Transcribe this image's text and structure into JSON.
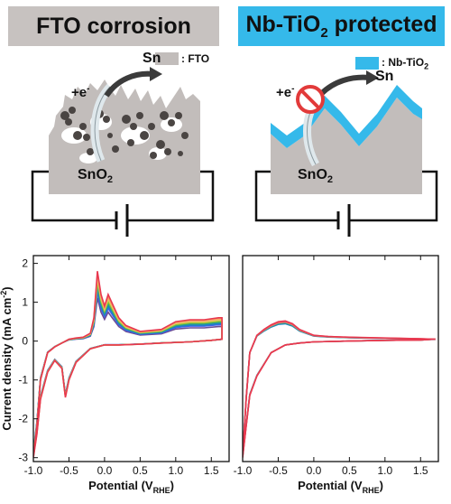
{
  "top": {
    "left_title": "FTO corrosion",
    "right_title": "Nb-TiO",
    "right_title_sub": "2",
    "right_title_tail": " protected",
    "left_legend": ": FTO",
    "right_legend": ": Nb-TiO",
    "right_legend_sub": "2",
    "electron_label": "+e",
    "electron_sup": "-",
    "product_label": "Sn",
    "reactant_label": "SnO",
    "reactant_sub": "2"
  },
  "colors": {
    "fto": "#c2bdbb",
    "nbtio2": "#35b9ea",
    "title_left_bg": "#c7c2c0",
    "title_right_bg": "#35b9ea",
    "deposit": "#4a4543",
    "forbidden": "#e23a3a"
  },
  "icons": [
    "curved-arrow-icon",
    "forbidden-icon",
    "battery-icon"
  ],
  "chart_data": [
    {
      "type": "line",
      "panel": "left",
      "xlabel": "Potential (V",
      "xlabel_sub": "RHE",
      "xlabel_tail": ")",
      "ylabel": "Current density (mA cm",
      "ylabel_sup": "-2",
      "ylabel_tail": ")",
      "xlim": [
        -1.0,
        1.75
      ],
      "ylim": [
        -3.1,
        2.2
      ],
      "xticks": [
        "-1.0",
        "-0.5",
        "0.0",
        "0.5",
        "1.0",
        "1.5"
      ],
      "xtick_values": [
        -1.0,
        -0.5,
        0.0,
        0.5,
        1.0,
        1.5
      ],
      "yticks": [
        "-3",
        "-2",
        "-1",
        "0",
        "1",
        "2"
      ],
      "ytick_values": [
        -3,
        -2,
        -1,
        0,
        1,
        2
      ],
      "series_colors": [
        "#e8384f",
        "#f4a261",
        "#e9c46a",
        "#8ac926",
        "#2a9d8f",
        "#1982c4",
        "#4361ee",
        "#6a4c93"
      ],
      "forward_x": [
        -1.0,
        -0.95,
        -0.9,
        -0.8,
        -0.7,
        -0.6,
        -0.5,
        -0.4,
        -0.3,
        -0.2,
        -0.15,
        -0.1,
        -0.05,
        0.0,
        0.05,
        0.1,
        0.2,
        0.3,
        0.5,
        0.8,
        1.0,
        1.2,
        1.4,
        1.6,
        1.65
      ],
      "forward_y": [
        -3.0,
        -2.2,
        -1.0,
        -0.3,
        -0.15,
        -0.05,
        0.05,
        0.08,
        0.1,
        0.2,
        0.6,
        1.8,
        1.2,
        0.9,
        1.2,
        1.0,
        0.6,
        0.4,
        0.25,
        0.3,
        0.5,
        0.55,
        0.55,
        0.6,
        0.6
      ],
      "reverse_x": [
        1.65,
        1.5,
        1.2,
        0.8,
        0.5,
        0.2,
        0.0,
        -0.2,
        -0.4,
        -0.5,
        -0.55,
        -0.6,
        -0.7,
        -0.8,
        -0.9,
        -0.95,
        -1.0
      ],
      "reverse_y": [
        0.05,
        0.02,
        -0.02,
        -0.05,
        -0.08,
        -0.1,
        -0.1,
        -0.2,
        -0.55,
        -1.0,
        -1.45,
        -0.7,
        -0.5,
        -0.8,
        -1.5,
        -2.4,
        -3.0
      ],
      "amplitudes": [
        1.0,
        0.95,
        0.9,
        0.85,
        0.8,
        0.75,
        0.7,
        0.62
      ]
    },
    {
      "type": "line",
      "panel": "right",
      "xlabel": "Potential (V",
      "xlabel_sub": "RHE",
      "xlabel_tail": ")",
      "xlim": [
        -1.0,
        1.75
      ],
      "ylim": [
        -3.1,
        2.2
      ],
      "xticks": [
        "-1.0",
        "-0.5",
        "0.0",
        "0.5",
        "1.0",
        "1.5"
      ],
      "xtick_values": [
        -1.0,
        -0.5,
        0.0,
        0.5,
        1.0,
        1.5
      ],
      "series_colors": [
        "#e8384f",
        "#ee5a6f",
        "#f08a5d",
        "#2a9d8f",
        "#1982c4"
      ],
      "forward_x": [
        -1.0,
        -0.95,
        -0.9,
        -0.8,
        -0.7,
        -0.6,
        -0.5,
        -0.4,
        -0.3,
        -0.2,
        0.0,
        0.2,
        0.5,
        1.0,
        1.5,
        1.7
      ],
      "forward_y": [
        -3.0,
        -1.5,
        -0.3,
        0.15,
        0.3,
        0.42,
        0.5,
        0.52,
        0.45,
        0.3,
        0.15,
        0.12,
        0.1,
        0.08,
        0.06,
        0.05
      ],
      "reverse_x": [
        1.7,
        1.5,
        1.0,
        0.5,
        0.0,
        -0.2,
        -0.4,
        -0.6,
        -0.7,
        -0.8,
        -0.9,
        -0.95,
        -1.0
      ],
      "reverse_y": [
        0.05,
        0.03,
        0.02,
        0.0,
        -0.02,
        -0.05,
        -0.1,
        -0.3,
        -0.6,
        -0.9,
        -1.4,
        -2.2,
        -3.0
      ],
      "amplitudes": [
        1.0,
        0.97,
        0.94,
        0.9,
        0.86
      ]
    }
  ]
}
